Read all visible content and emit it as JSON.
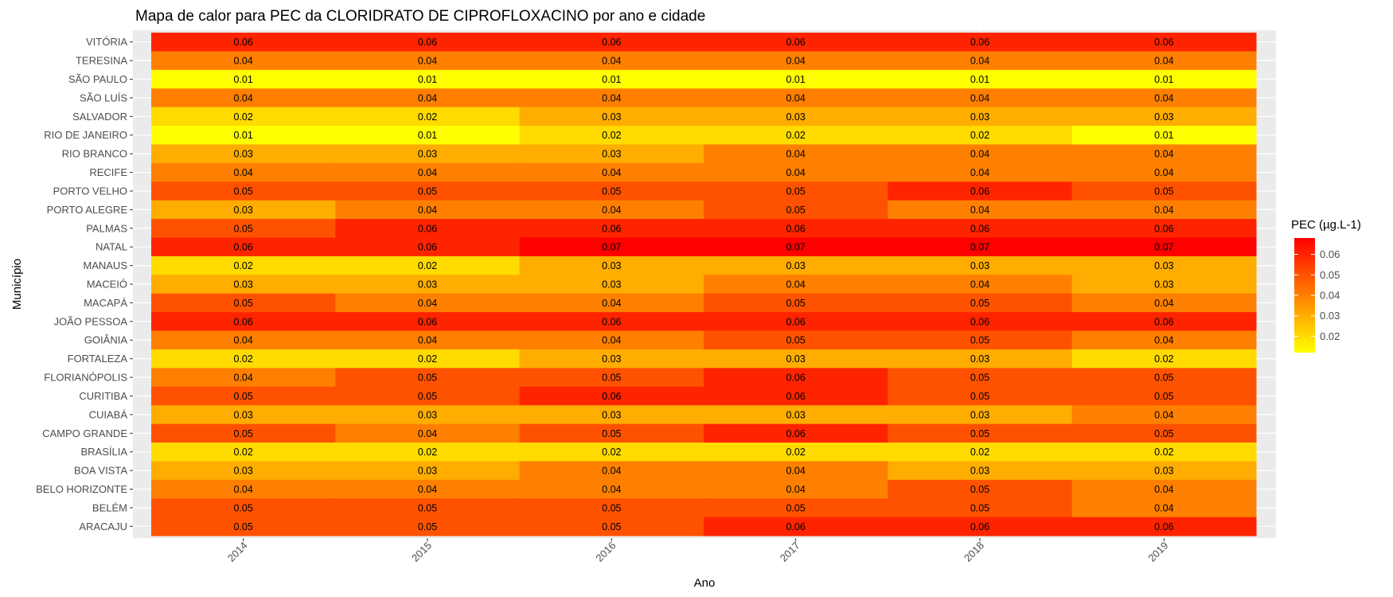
{
  "chart_data": {
    "type": "heatmap",
    "title": "Mapa de calor para PEC da CLORIDRATO DE CIPROFLOXACINO por ano e cidade",
    "xlabel": "Ano",
    "ylabel": "Município",
    "x": [
      "2014",
      "2015",
      "2016",
      "2017",
      "2018",
      "2019"
    ],
    "y": [
      "VITÓRIA",
      "TERESINA",
      "SÃO PAULO",
      "SÃO LUÍS",
      "SALVADOR",
      "RIO DE JANEIRO",
      "RIO BRANCO",
      "RECIFE",
      "PORTO VELHO",
      "PORTO ALEGRE",
      "PALMAS",
      "NATAL",
      "MANAUS",
      "MACEIÓ",
      "MACAPÁ",
      "JOÃO PESSOA",
      "GOIÂNIA",
      "FORTALEZA",
      "FLORIANÓPOLIS",
      "CURITIBA",
      "CUIABÁ",
      "CAMPO GRANDE",
      "BRASÍLIA",
      "BOA VISTA",
      "BELO HORIZONTE",
      "BELÉM",
      "ARACAJU"
    ],
    "values": [
      [
        0.06,
        0.06,
        0.06,
        0.06,
        0.06,
        0.06
      ],
      [
        0.04,
        0.04,
        0.04,
        0.04,
        0.04,
        0.04
      ],
      [
        0.01,
        0.01,
        0.01,
        0.01,
        0.01,
        0.01
      ],
      [
        0.04,
        0.04,
        0.04,
        0.04,
        0.04,
        0.04
      ],
      [
        0.02,
        0.02,
        0.03,
        0.03,
        0.03,
        0.03
      ],
      [
        0.01,
        0.01,
        0.02,
        0.02,
        0.02,
        0.01
      ],
      [
        0.03,
        0.03,
        0.03,
        0.04,
        0.04,
        0.04
      ],
      [
        0.04,
        0.04,
        0.04,
        0.04,
        0.04,
        0.04
      ],
      [
        0.05,
        0.05,
        0.05,
        0.05,
        0.06,
        0.05
      ],
      [
        0.03,
        0.04,
        0.04,
        0.05,
        0.04,
        0.04
      ],
      [
        0.05,
        0.06,
        0.06,
        0.06,
        0.06,
        0.06
      ],
      [
        0.06,
        0.06,
        0.07,
        0.07,
        0.07,
        0.07
      ],
      [
        0.02,
        0.02,
        0.03,
        0.03,
        0.03,
        0.03
      ],
      [
        0.03,
        0.03,
        0.03,
        0.04,
        0.04,
        0.03
      ],
      [
        0.05,
        0.04,
        0.04,
        0.05,
        0.05,
        0.04
      ],
      [
        0.06,
        0.06,
        0.06,
        0.06,
        0.06,
        0.06
      ],
      [
        0.04,
        0.04,
        0.04,
        0.05,
        0.05,
        0.04
      ],
      [
        0.02,
        0.02,
        0.03,
        0.03,
        0.03,
        0.02
      ],
      [
        0.04,
        0.05,
        0.05,
        0.06,
        0.05,
        0.05
      ],
      [
        0.05,
        0.05,
        0.06,
        0.06,
        0.05,
        0.05
      ],
      [
        0.03,
        0.03,
        0.03,
        0.03,
        0.03,
        0.04
      ],
      [
        0.05,
        0.04,
        0.05,
        0.06,
        0.05,
        0.05
      ],
      [
        0.02,
        0.02,
        0.02,
        0.02,
        0.02,
        0.02
      ],
      [
        0.03,
        0.03,
        0.04,
        0.04,
        0.03,
        0.03
      ],
      [
        0.04,
        0.04,
        0.04,
        0.04,
        0.05,
        0.04
      ],
      [
        0.05,
        0.05,
        0.05,
        0.05,
        0.05,
        0.04
      ],
      [
        0.05,
        0.05,
        0.05,
        0.06,
        0.06,
        0.06
      ]
    ],
    "color_scale": {
      "low": "#FFFF00",
      "high": "#FF0000",
      "min": 0.012,
      "max": 0.068
    },
    "legend": {
      "title": "PEC (µg.L-1)",
      "placement": "right",
      "ticks": [
        "0.02",
        "0.03",
        "0.04",
        "0.05",
        "0.06"
      ]
    },
    "grid": true,
    "panel_background": "#EBEBEB"
  }
}
